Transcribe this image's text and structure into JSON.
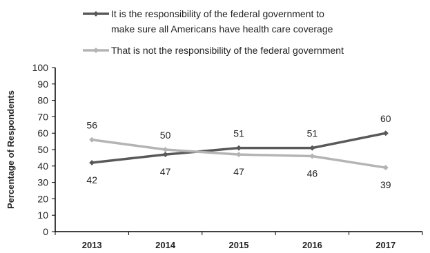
{
  "chart_data": {
    "type": "line",
    "title": "",
    "xlabel": "",
    "ylabel": "Percentage of Respondents",
    "ylim": [
      0,
      100
    ],
    "ytick_step": 10,
    "categories": [
      "2013",
      "2014",
      "2015",
      "2016",
      "2017"
    ],
    "legend_position": "top",
    "grid": false,
    "series": [
      {
        "name": "It is the responsibility of the federal government to make sure all Americans have health care coverage",
        "name_lines": [
          "It is the responsibility of the federal government to",
          "make sure all Americans have health care coverage"
        ],
        "color": "#595959",
        "values": [
          42,
          47,
          51,
          51,
          60
        ],
        "label_side": [
          "below",
          "below",
          "above",
          "above",
          "above"
        ]
      },
      {
        "name": "That is not the responsibility of the federal government",
        "name_lines": [
          "That is not the responsibility of the federal government"
        ],
        "color": "#b4b4b4",
        "values": [
          56,
          50,
          47,
          46,
          39
        ],
        "label_side": [
          "above",
          "above",
          "below",
          "below",
          "below"
        ]
      }
    ]
  }
}
